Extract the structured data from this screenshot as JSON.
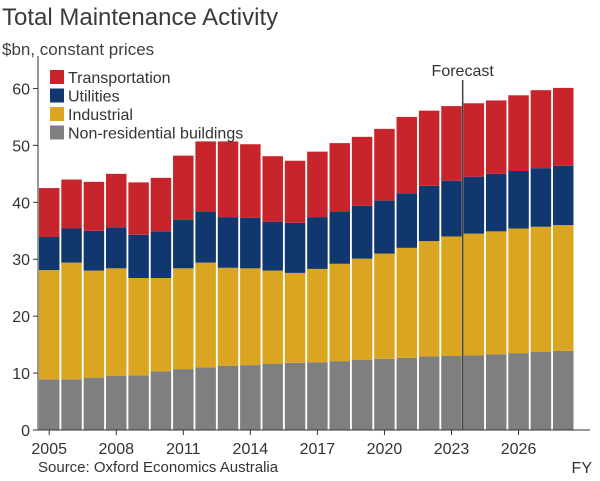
{
  "header": {
    "title": "Total Maintenance Activity",
    "subtitle": "$bn, constant prices"
  },
  "footer": {
    "source": "Source: Oxford Economics Australia"
  },
  "colors": {
    "Non-residential buildings": "#7f7f7f",
    "Industrial": "#daa520",
    "Utilities": "#10376e",
    "Transportation": "#c8242b",
    "axis": "#333333",
    "forecast_line": "#404040"
  },
  "chart_data": {
    "type": "bar",
    "stacked": true,
    "title": "Total Maintenance Activity",
    "subtitle": "$bn, constant prices",
    "xlabel": "FY",
    "ylabel": "",
    "ylim": [
      0,
      65
    ],
    "yticks": [
      0,
      10,
      20,
      30,
      40,
      50,
      60
    ],
    "categories": [
      2005,
      2006,
      2007,
      2008,
      2009,
      2010,
      2011,
      2012,
      2013,
      2014,
      2015,
      2016,
      2017,
      2018,
      2019,
      2020,
      2021,
      2022,
      2023,
      2024,
      2025,
      2026,
      2027,
      2028
    ],
    "xtick_labels": [
      "2005",
      "2008",
      "2011",
      "2014",
      "2017",
      "2020",
      "2023",
      "2026"
    ],
    "xtick_positions": [
      2005,
      2008,
      2011,
      2014,
      2017,
      2020,
      2023,
      2026
    ],
    "series": [
      {
        "name": "Non-residential buildings",
        "values": [
          8.9,
          8.9,
          9.2,
          9.5,
          9.6,
          10.3,
          10.7,
          11.0,
          11.3,
          11.4,
          11.6,
          11.8,
          11.9,
          12.1,
          12.3,
          12.5,
          12.7,
          12.9,
          13.0,
          13.1,
          13.3,
          13.5,
          13.7,
          13.9
        ]
      },
      {
        "name": "Industrial",
        "values": [
          19.2,
          20.5,
          18.8,
          18.9,
          17.1,
          16.4,
          17.7,
          18.4,
          17.2,
          17.0,
          16.4,
          15.8,
          16.4,
          17.1,
          17.8,
          18.5,
          19.3,
          20.3,
          21.0,
          21.4,
          21.6,
          21.9,
          22.0,
          22.1
        ]
      },
      {
        "name": "Utilities",
        "values": [
          5.8,
          6.0,
          7.0,
          7.2,
          7.6,
          8.2,
          8.5,
          8.9,
          8.9,
          8.9,
          8.6,
          8.8,
          9.1,
          9.1,
          9.3,
          9.3,
          9.6,
          9.7,
          9.8,
          10.0,
          10.1,
          10.1,
          10.3,
          10.4
        ]
      },
      {
        "name": "Transportation",
        "values": [
          8.6,
          8.6,
          8.6,
          9.4,
          9.2,
          9.4,
          11.3,
          12.4,
          13.3,
          12.9,
          11.5,
          10.9,
          11.5,
          12.1,
          12.1,
          12.6,
          13.4,
          13.2,
          13.1,
          12.9,
          12.9,
          13.3,
          13.7,
          13.7
        ]
      }
    ],
    "legend": {
      "placement": "top-left",
      "order": [
        "Transportation",
        "Utilities",
        "Industrial",
        "Non-residential buildings"
      ]
    },
    "annotations": [
      {
        "text": "Forecast",
        "at_category": 2024,
        "type": "vertical-line"
      }
    ],
    "grid": false
  }
}
